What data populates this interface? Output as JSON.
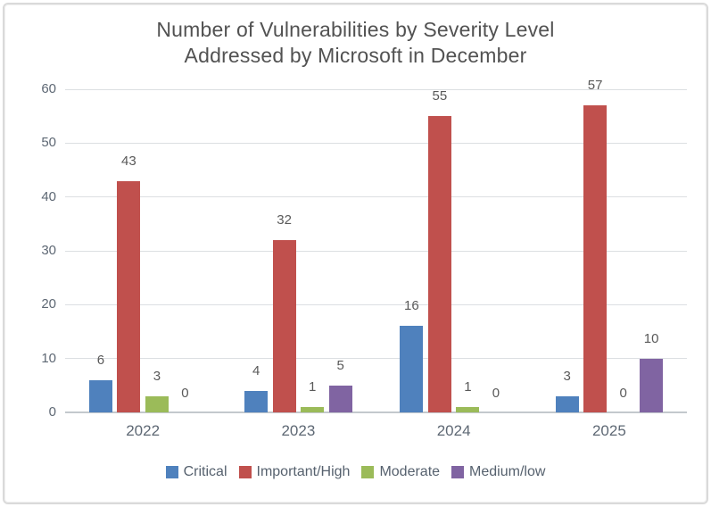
{
  "frame": {
    "background": "#ffffff",
    "border_color": "#dadada"
  },
  "chart_data": {
    "type": "bar",
    "title_lines": [
      "Number of Vulnerabilities by Severity Level",
      "Addressed by Microsoft in December"
    ],
    "title": "Number of Vulnerabilities by Severity Level Addressed by Microsoft in December",
    "categories": [
      "2022",
      "2023",
      "2024",
      "2025"
    ],
    "series": [
      {
        "name": "Critical",
        "color": "#4f81bd",
        "values": [
          6,
          4,
          16,
          3
        ]
      },
      {
        "name": "Important/High",
        "color": "#c0504d",
        "values": [
          43,
          32,
          55,
          57
        ]
      },
      {
        "name": "Moderate",
        "color": "#9bbb59",
        "values": [
          3,
          1,
          1,
          0
        ]
      },
      {
        "name": "Medium/low",
        "color": "#8064a2",
        "values": [
          0,
          5,
          0,
          10
        ]
      }
    ],
    "show_data_labels": true,
    "xlabel": "",
    "ylabel": "",
    "ylim": [
      0,
      60
    ],
    "ytick_step": 10,
    "yticks": [
      "0",
      "10",
      "20",
      "30",
      "40",
      "50",
      "60"
    ],
    "grid": true,
    "gridline_color": "#dcdfe2",
    "axis_line_color": "#c3c8cd",
    "axis_text_color": "#5e6874",
    "data_label_color": "#595959",
    "title_color": "#525252",
    "legend_position": "bottom"
  }
}
